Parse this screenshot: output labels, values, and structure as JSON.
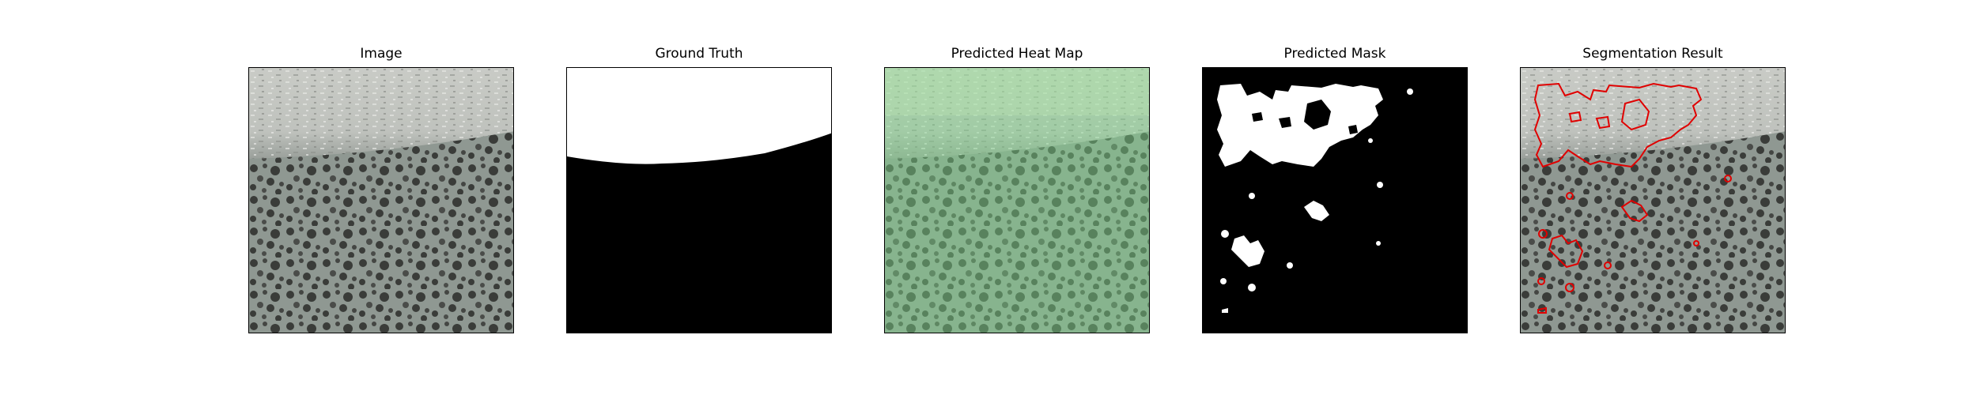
{
  "figure": {
    "panels": [
      {
        "title": "Image"
      },
      {
        "title": "Ground Truth"
      },
      {
        "title": "Predicted Heat Map"
      },
      {
        "title": "Predicted Mask"
      },
      {
        "title": "Segmentation Result"
      }
    ]
  },
  "colors": {
    "background": "#ffffff",
    "texture_light": "#cfd1cc",
    "texture_dark": "#3a3c39",
    "texture_mid": "#8f9892",
    "heatmap_tint": "#98e0a0",
    "mask_foreground": "#ffffff",
    "mask_background": "#000000",
    "contour": "#e00000"
  }
}
